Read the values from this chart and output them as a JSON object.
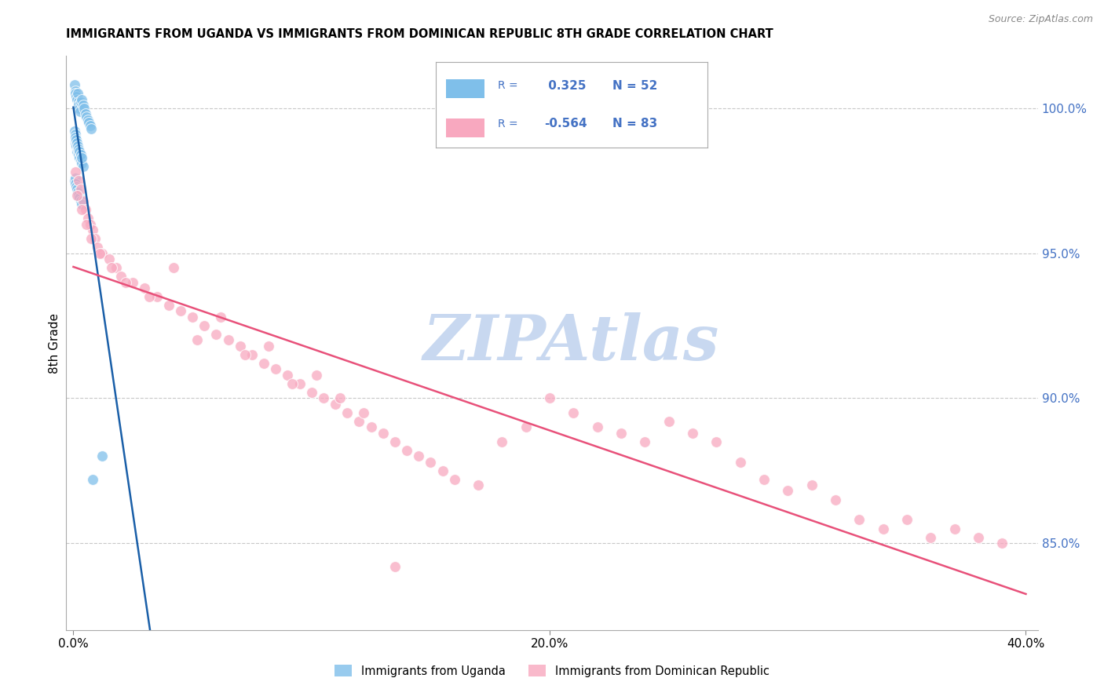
{
  "title": "IMMIGRANTS FROM UGANDA VS IMMIGRANTS FROM DOMINICAN REPUBLIC 8TH GRADE CORRELATION CHART",
  "source": "Source: ZipAtlas.com",
  "ylabel": "8th Grade",
  "right_yticks": [
    100.0,
    95.0,
    90.0,
    85.0
  ],
  "xlim_min": -0.3,
  "xlim_max": 40.5,
  "ylim_min": 82.0,
  "ylim_max": 101.8,
  "legend_r_uganda": "0.325",
  "legend_n_uganda": "52",
  "legend_r_dominican": "-0.564",
  "legend_n_dominican": "83",
  "uganda_color": "#7fbfea",
  "dominican_color": "#f8a8bf",
  "uganda_line_color": "#1a5fa8",
  "dominican_line_color": "#e8517a",
  "right_axis_color": "#4472c4",
  "watermark": "ZIPAtlas",
  "watermark_color": "#c8d8f0",
  "background_color": "#ffffff",
  "grid_color": "#c8c8c8",
  "xtick_labels": [
    "0.0%",
    "20.0%",
    "40.0%"
  ],
  "xtick_vals": [
    0.0,
    20.0,
    40.0
  ],
  "uganda_points_x": [
    0.05,
    0.08,
    0.1,
    0.12,
    0.15,
    0.18,
    0.2,
    0.22,
    0.25,
    0.28,
    0.3,
    0.35,
    0.4,
    0.45,
    0.5,
    0.55,
    0.6,
    0.65,
    0.7,
    0.75,
    0.08,
    0.1,
    0.12,
    0.15,
    0.18,
    0.2,
    0.25,
    0.3,
    0.35,
    0.4,
    0.05,
    0.08,
    0.1,
    0.12,
    0.15,
    0.18,
    0.2,
    0.25,
    0.3,
    0.35,
    0.05,
    0.08,
    0.1,
    0.12,
    0.15,
    0.18,
    0.2,
    0.25,
    0.3,
    0.35,
    0.8,
    1.2
  ],
  "uganda_points_y": [
    100.8,
    100.6,
    100.5,
    100.4,
    100.3,
    100.5,
    100.2,
    100.1,
    100.0,
    99.9,
    100.2,
    100.3,
    100.1,
    100.0,
    99.8,
    99.7,
    99.6,
    99.5,
    99.4,
    99.3,
    98.8,
    98.9,
    98.7,
    98.5,
    98.6,
    98.4,
    98.3,
    98.2,
    98.1,
    98.0,
    97.5,
    97.6,
    97.4,
    97.3,
    97.2,
    97.1,
    97.0,
    96.9,
    96.8,
    96.7,
    99.2,
    99.1,
    99.0,
    98.9,
    98.8,
    98.7,
    98.6,
    98.5,
    98.4,
    98.3,
    87.2,
    88.0
  ],
  "dominican_points_x": [
    0.1,
    0.2,
    0.3,
    0.4,
    0.5,
    0.6,
    0.7,
    0.8,
    0.9,
    1.0,
    1.2,
    1.5,
    1.8,
    2.0,
    2.5,
    3.0,
    3.5,
    4.0,
    4.5,
    5.0,
    5.5,
    6.0,
    6.5,
    7.0,
    7.5,
    8.0,
    8.5,
    9.0,
    9.5,
    10.0,
    10.5,
    11.0,
    11.5,
    12.0,
    12.5,
    13.0,
    13.5,
    14.0,
    14.5,
    15.0,
    15.5,
    16.0,
    17.0,
    18.0,
    19.0,
    20.0,
    21.0,
    22.0,
    23.0,
    24.0,
    25.0,
    26.0,
    27.0,
    28.0,
    29.0,
    30.0,
    31.0,
    32.0,
    33.0,
    34.0,
    35.0,
    36.0,
    37.0,
    38.0,
    39.0,
    0.15,
    0.35,
    0.55,
    0.75,
    1.1,
    1.6,
    2.2,
    3.2,
    4.2,
    5.2,
    6.2,
    7.2,
    8.2,
    9.2,
    10.2,
    11.2,
    12.2,
    13.5
  ],
  "dominican_points_y": [
    97.8,
    97.5,
    97.2,
    96.8,
    96.5,
    96.2,
    96.0,
    95.8,
    95.5,
    95.2,
    95.0,
    94.8,
    94.5,
    94.2,
    94.0,
    93.8,
    93.5,
    93.2,
    93.0,
    92.8,
    92.5,
    92.2,
    92.0,
    91.8,
    91.5,
    91.2,
    91.0,
    90.8,
    90.5,
    90.2,
    90.0,
    89.8,
    89.5,
    89.2,
    89.0,
    88.8,
    88.5,
    88.2,
    88.0,
    87.8,
    87.5,
    87.2,
    87.0,
    88.5,
    89.0,
    90.0,
    89.5,
    89.0,
    88.8,
    88.5,
    89.2,
    88.8,
    88.5,
    87.8,
    87.2,
    86.8,
    87.0,
    86.5,
    85.8,
    85.5,
    85.8,
    85.2,
    85.5,
    85.2,
    85.0,
    97.0,
    96.5,
    96.0,
    95.5,
    95.0,
    94.5,
    94.0,
    93.5,
    94.5,
    92.0,
    92.8,
    91.5,
    91.8,
    90.5,
    90.8,
    90.0,
    89.5,
    84.2
  ]
}
